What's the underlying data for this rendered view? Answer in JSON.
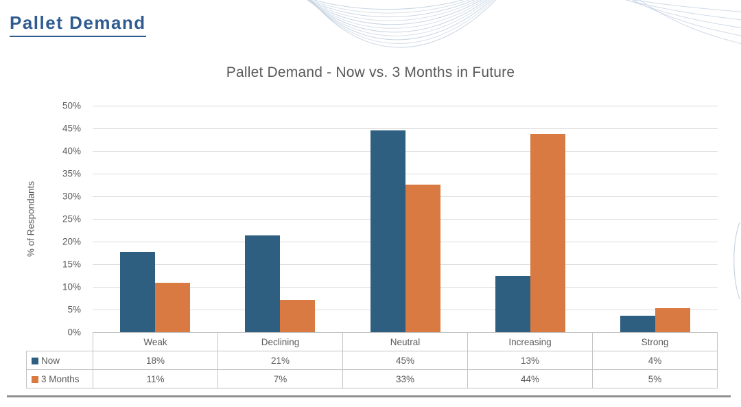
{
  "page": {
    "title": "Pallet Demand"
  },
  "colors": {
    "page_title": "#2F5B8F",
    "chart_text": "#595959",
    "gridline": "#DCDCDC",
    "table_border": "#C2C2C2",
    "wave_decoration": "#C8D5E3",
    "bottom_divider": "#8F8F8F"
  },
  "chart_data": {
    "type": "bar",
    "title": "Pallet Demand - Now vs. 3 Months in Future",
    "ylabel": "% of Respondants",
    "ylim": [
      0,
      50
    ],
    "ytick_step": 5,
    "ytick_suffix": "%",
    "grid": true,
    "legend_position": "data-table-left",
    "categories": [
      "Weak",
      "Declining",
      "Neutral",
      "Increasing",
      "Strong"
    ],
    "series": [
      {
        "name": "Now",
        "color": "#2E5F80",
        "values": [
          17.8,
          21.3,
          44.6,
          12.5,
          3.6
        ],
        "labels": [
          "18%",
          "21%",
          "45%",
          "13%",
          "4%"
        ]
      },
      {
        "name": "3 Months",
        "color": "#D97A42",
        "values": [
          10.9,
          7.1,
          32.6,
          43.8,
          5.3
        ],
        "labels": [
          "11%",
          "7%",
          "33%",
          "44%",
          "5%"
        ]
      }
    ]
  }
}
